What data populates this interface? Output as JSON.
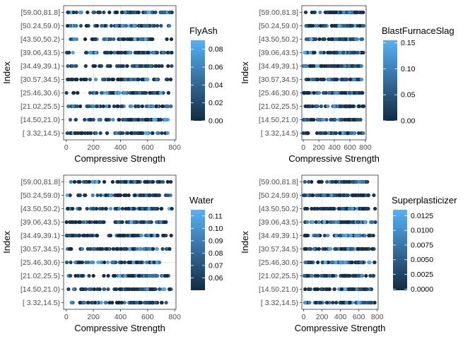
{
  "chart_data": [
    {
      "type": "scatter",
      "xlabel": "Compressive Strength",
      "ylabel": "Index",
      "xlim": [
        -20,
        810
      ],
      "x_ticks": [
        0,
        200,
        400,
        600,
        800
      ],
      "categories": [
        "[ 3.32,14.5)",
        "[14.50,21.0)",
        "[21.02,25.5)",
        "[25.46,30.6)",
        "[30.57,34.5)",
        "[34.49,39.1)",
        "[39.06,43.5)",
        "[43.50,50.2)",
        "[50.24,59.0)",
        "[59.00,81.8]"
      ],
      "grid": true,
      "legend": {
        "title": "FlyAsh",
        "position": "right",
        "ticks": [
          0.0,
          0.02,
          0.04,
          0.06,
          0.08
        ],
        "tick_labels": [
          "0.00",
          "0.02",
          "0.04",
          "0.06",
          "0.08"
        ],
        "range": [
          0,
          0.09
        ],
        "low_color": "#132B43",
        "high_color": "#56B1F7"
      },
      "seed": 11
    },
    {
      "type": "scatter",
      "xlabel": "Compressive Strength",
      "ylabel": "Index",
      "xlim": [
        -20,
        810
      ],
      "x_ticks": [
        0,
        200,
        400,
        600,
        800
      ],
      "categories": [
        "[ 3.32,14.5)",
        "[14.50,21.0)",
        "[21.02,25.5)",
        "[25.46,30.6)",
        "[30.57,34.5)",
        "[34.49,39.1)",
        "[39.06,43.5)",
        "[43.50,50.2)",
        "[50.24,59.0)",
        "[59.00,81.8]"
      ],
      "grid": true,
      "legend": {
        "title": "BlastFurnaceSlag",
        "position": "right",
        "ticks": [
          0.0,
          0.05,
          0.1,
          0.15
        ],
        "tick_labels": [
          "0.00",
          "0.05",
          "0.10",
          "0.15"
        ],
        "range": [
          0,
          0.155
        ],
        "low_color": "#132B43",
        "high_color": "#56B1F7"
      },
      "seed": 23
    },
    {
      "type": "scatter",
      "xlabel": "Compressive Strength",
      "ylabel": "Index",
      "xlim": [
        -20,
        810
      ],
      "x_ticks": [
        0,
        200,
        400,
        600,
        800
      ],
      "categories": [
        "[ 3.32,14.5)",
        "[14.50,21.0)",
        "[21.02,25.5)",
        "[25.46,30.6)",
        "[30.57,34.5)",
        "[34.49,39.1)",
        "[39.06,43.5)",
        "[43.50,50.2)",
        "[50.24,59.0)",
        "[59.00,81.8]"
      ],
      "grid": true,
      "legend": {
        "title": "Water",
        "position": "right",
        "ticks": [
          0.06,
          0.07,
          0.08,
          0.09,
          0.1,
          0.11
        ],
        "tick_labels": [
          "0.06",
          "0.07",
          "0.08",
          "0.09",
          "0.10",
          "0.11"
        ],
        "range": [
          0.05,
          0.115
        ],
        "low_color": "#132B43",
        "high_color": "#56B1F7"
      },
      "seed": 37
    },
    {
      "type": "scatter",
      "xlabel": "Compressive Strength",
      "ylabel": "Index",
      "xlim": [
        -20,
        810
      ],
      "x_ticks": [
        0,
        200,
        400,
        600,
        800
      ],
      "categories": [
        "[ 3.32,14.5)",
        "[14.50,21.0)",
        "[21.02,25.5)",
        "[25.46,30.6)",
        "[30.57,34.5)",
        "[34.49,39.1)",
        "[39.06,43.5)",
        "[43.50,50.2)",
        "[50.24,59.0)",
        "[59.00,81.8]"
      ],
      "grid": true,
      "legend": {
        "title": "Superplasticizer",
        "position": "right",
        "ticks": [
          0.0,
          0.0025,
          0.005,
          0.0075,
          0.01,
          0.0125
        ],
        "tick_labels": [
          "0.0000",
          "0.0025",
          "0.0050",
          "0.0075",
          "0.0100",
          "0.0125"
        ],
        "range": [
          -0.0002,
          0.0135
        ],
        "low_color": "#132B43",
        "high_color": "#56B1F7"
      },
      "seed": 53
    }
  ]
}
